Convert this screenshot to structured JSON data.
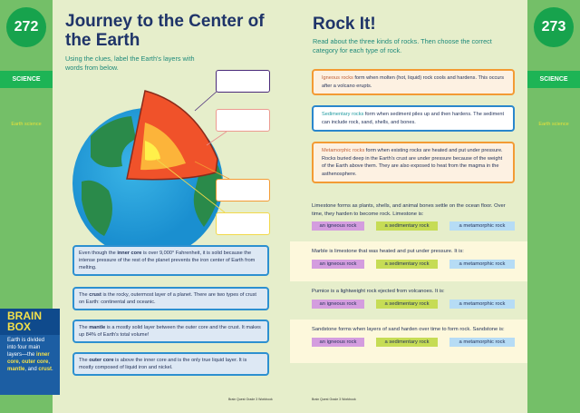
{
  "left_page": {
    "page_number": "272",
    "section": "SCIENCE",
    "topic": "Earth science",
    "title": "Journey to the Center of the Earth",
    "instructions": "Using the clues, label the Earth's layers with words from below.",
    "clues": [
      {
        "pre": "Even though the ",
        "term": "inner core",
        "post": " is over 9,000° Fahrenheit, it is solid because the intense pressure of the rest of the planet prevents the iron center of Earth from melting."
      },
      {
        "pre": "The ",
        "term": "crust",
        "post": " is the rocky, outermost layer of a planet. There are two types of crust on Earth: continental and oceanic."
      },
      {
        "pre": "The ",
        "term": "mantle",
        "post": " is a mostly solid layer between the outer core and the crust. It makes up 84% of Earth's total volume!"
      },
      {
        "pre": "The ",
        "term": "outer core",
        "post": " is above the inner core and is the only true liquid layer. It is mostly composed of liquid iron and nickel."
      }
    ],
    "brain_box": {
      "title": "BRAIN BOX",
      "intro": "Earth is divided into four main layers—the ",
      "terms": [
        "inner core",
        "outer core",
        "mantle",
        "crust"
      ],
      "sep1": ", ",
      "sep2": ", ",
      "sep3": ", and ",
      "end": "."
    },
    "footer": "Brain Quest Grade 3 Workbook"
  },
  "right_page": {
    "page_number": "273",
    "section": "SCIENCE",
    "topic": "Earth science",
    "title": "Rock It!",
    "instructions": "Read about the three kinds of rocks. Then choose the correct category for each type of rock.",
    "rock_types": [
      {
        "term": "Igneous rocks",
        "text": " form when molten (hot, liquid) rock cools and hardens. This occurs after a volcano erupts.",
        "color": "#c0603a"
      },
      {
        "term": "Sedimentary rocks",
        "text": " form when sediment piles up and then hardens. The sediment can include rock, sand, shells, and bones.",
        "color": "#1f9aa0"
      },
      {
        "term": "Metamorphic rocks",
        "text": " form when existing rocks are heated and put under pressure. Rocks buried deep in the Earth's crust are under pressure because of the weight of the Earth above them. They are also exposed to heat from the magma in the asthenosphere.",
        "color": "#c0603a"
      }
    ],
    "questions": [
      {
        "text": "Limestone forms as plants, shells, and animal bones settle on the ocean floor. Over time, they harden to become rock. Limestone is:"
      },
      {
        "text": "Marble is limestone that was heated and put under pressure. It is:"
      },
      {
        "text": "Pumice is a lightweight rock ejected from volcanoes. It is:"
      },
      {
        "text": "Sandstone forms when layers of sand harden over time to form rock. Sandstone is:"
      }
    ],
    "options": [
      "an igneous rock",
      "a sedimentary rock",
      "a metamorphic rock"
    ],
    "footer": "Brain Quest Grade 3 Workbook"
  }
}
